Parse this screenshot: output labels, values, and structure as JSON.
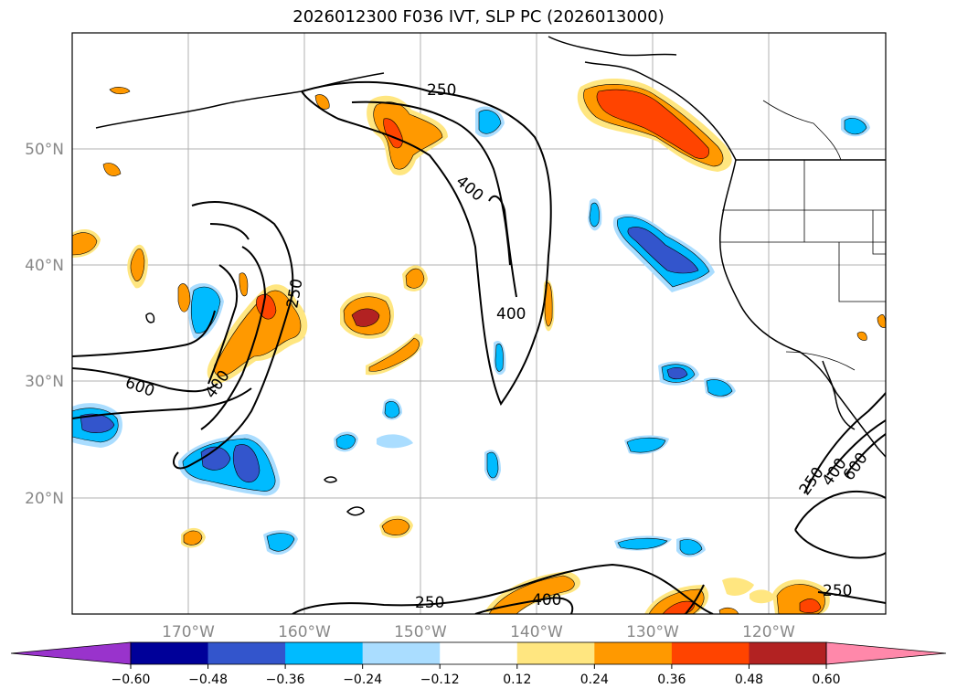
{
  "title": "2026012300 F036 IVT, SLP PC (2026013000)",
  "lat_labels": [
    "50°N",
    "40°N",
    "30°N",
    "20°N"
  ],
  "lon_labels": [
    "170°W",
    "160°W",
    "150°W",
    "140°W",
    "130°W",
    "120°W"
  ],
  "contour_labels": [
    "250",
    "400",
    "250",
    "400",
    "600",
    "400",
    "250",
    "400",
    "250",
    "400",
    "600",
    "250"
  ],
  "colorbar": {
    "ticks": [
      "−0.60",
      "−0.48",
      "−0.36",
      "−0.24",
      "−0.12",
      "0.12",
      "0.24",
      "0.36",
      "0.48",
      "0.60"
    ],
    "colors": [
      "#9933cc",
      "#000099",
      "#3355cc",
      "#00bbff",
      "#aaddff",
      "#ffffff",
      "#ffe680",
      "#ff9900",
      "#ff4400",
      "#b22222",
      "#ff88aa"
    ]
  }
}
